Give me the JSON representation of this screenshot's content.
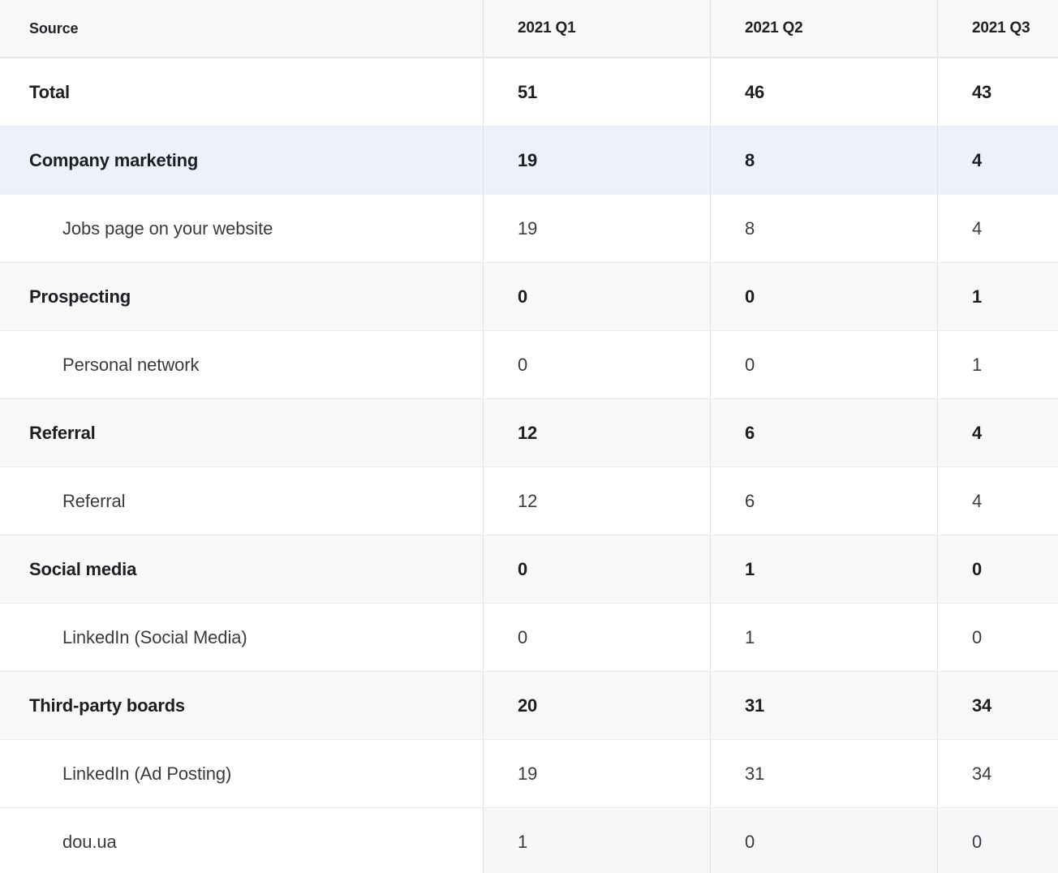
{
  "chart_data": {
    "type": "table",
    "columns": [
      "Source",
      "2021 Q1",
      "2021 Q2",
      "2021 Q3"
    ],
    "rows": [
      {
        "label": "Total",
        "values": [
          51,
          46,
          43
        ],
        "row_style": "total"
      },
      {
        "label": "Company marketing",
        "values": [
          19,
          8,
          4
        ],
        "row_style": "category",
        "highlight": "selected"
      },
      {
        "label": "Jobs page on your website",
        "values": [
          19,
          8,
          4
        ],
        "row_style": "child"
      },
      {
        "label": "Prospecting",
        "values": [
          0,
          0,
          1
        ],
        "row_style": "category"
      },
      {
        "label": "Personal network",
        "values": [
          0,
          0,
          1
        ],
        "row_style": "child"
      },
      {
        "label": "Referral",
        "values": [
          12,
          6,
          4
        ],
        "row_style": "category"
      },
      {
        "label": "Referral",
        "values": [
          12,
          6,
          4
        ],
        "row_style": "child"
      },
      {
        "label": "Social media",
        "values": [
          0,
          1,
          0
        ],
        "row_style": "category"
      },
      {
        "label": "LinkedIn (Social Media)",
        "values": [
          0,
          1,
          0
        ],
        "row_style": "child"
      },
      {
        "label": "Third-party boards",
        "values": [
          20,
          31,
          34
        ],
        "row_style": "category"
      },
      {
        "label": "LinkedIn (Ad Posting)",
        "values": [
          19,
          31,
          34
        ],
        "row_style": "child"
      },
      {
        "label": "dou.ua",
        "values": [
          1,
          0,
          0
        ],
        "row_style": "child",
        "highlight": "tinted"
      }
    ]
  },
  "colors": {
    "header_bg": "#f8f8f8",
    "category_row_bg": "#f8f8f8",
    "selected_row_bg": "#edf1f9",
    "tinted_value_cell_bg": "#f6f7f8",
    "vertical_border": "#e0e1e3",
    "horizontal_border": "#ececec",
    "text_bold": "#1d1e21",
    "text_regular": "#3a3b3f"
  }
}
